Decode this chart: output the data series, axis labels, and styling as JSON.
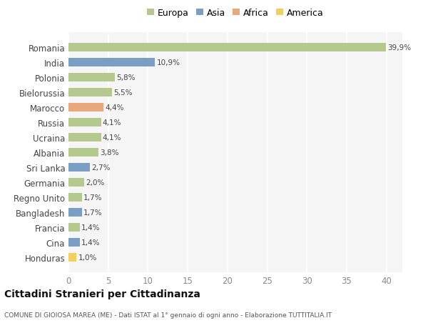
{
  "categories": [
    "Romania",
    "India",
    "Polonia",
    "Bielorussia",
    "Marocco",
    "Russia",
    "Ucraina",
    "Albania",
    "Sri Lanka",
    "Germania",
    "Regno Unito",
    "Bangladesh",
    "Francia",
    "Cina",
    "Honduras"
  ],
  "values": [
    39.9,
    10.9,
    5.8,
    5.5,
    4.4,
    4.1,
    4.1,
    3.8,
    2.7,
    2.0,
    1.7,
    1.7,
    1.4,
    1.4,
    1.0
  ],
  "labels": [
    "39,9%",
    "10,9%",
    "5,8%",
    "5,5%",
    "4,4%",
    "4,1%",
    "4,1%",
    "3,8%",
    "2,7%",
    "2,0%",
    "1,7%",
    "1,7%",
    "1,4%",
    "1,4%",
    "1,0%"
  ],
  "continent": [
    "Europa",
    "Asia",
    "Europa",
    "Europa",
    "Africa",
    "Europa",
    "Europa",
    "Europa",
    "Asia",
    "Europa",
    "Europa",
    "Asia",
    "Europa",
    "Asia",
    "America"
  ],
  "colors": {
    "Europa": "#b5c98e",
    "Asia": "#7b9ec4",
    "Africa": "#e8a87c",
    "America": "#f0d060"
  },
  "legend_order": [
    "Europa",
    "Asia",
    "Africa",
    "America"
  ],
  "title": "Cittadini Stranieri per Cittadinanza",
  "subtitle": "COMUNE DI GIOIOSA MAREA (ME) - Dati ISTAT al 1° gennaio di ogni anno - Elaborazione TUTTITALIA.IT",
  "xlim": [
    0,
    42
  ],
  "xticks": [
    0,
    5,
    10,
    15,
    20,
    25,
    30,
    35,
    40
  ],
  "bg_color": "#ffffff",
  "plot_bg_color": "#f5f5f5",
  "grid_color": "#ffffff"
}
